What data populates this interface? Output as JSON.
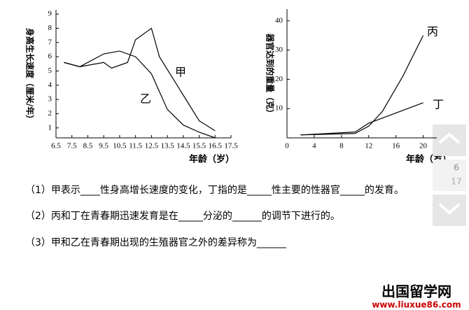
{
  "chart_data": [
    {
      "type": "line",
      "ylabel": "身高生长速度（厘米/年）",
      "xlabel": "年龄（岁）",
      "xlim": [
        6.5,
        17.5
      ],
      "xticks": [
        6.5,
        7.5,
        8.5,
        9.5,
        10.5,
        11.5,
        12.5,
        13.5,
        14.5,
        15.5,
        16.5,
        17.5
      ],
      "ylim": [
        0.3,
        9.3
      ],
      "yticks": [
        1,
        2,
        3,
        4,
        5,
        6,
        7,
        8,
        9
      ],
      "series": [
        {
          "name": "甲",
          "color": "#000000",
          "x": [
            7.0,
            8.0,
            9.5,
            10.0,
            11.0,
            11.5,
            12.5,
            13.0,
            14.5,
            15.5,
            16.5
          ],
          "values": [
            5.6,
            5.3,
            5.6,
            5.2,
            5.6,
            7.2,
            8.0,
            6.0,
            3.3,
            1.5,
            0.8
          ]
        },
        {
          "name": "乙",
          "color": "#000000",
          "x": [
            7.0,
            8.0,
            9.5,
            10.5,
            11.5,
            12.5,
            13.5,
            14.5,
            15.5,
            16.5
          ],
          "values": [
            5.6,
            5.3,
            6.2,
            6.4,
            6.0,
            4.8,
            2.3,
            1.2,
            0.7,
            0.3
          ]
        }
      ]
    },
    {
      "type": "line",
      "ylabel": "器官达到的重量（克）",
      "xlabel": "年龄（岁）",
      "xlim": [
        0,
        22
      ],
      "xticks": [
        0,
        4,
        8,
        12,
        16,
        20
      ],
      "ylim": [
        0,
        44
      ],
      "yticks": [
        10,
        20,
        30,
        40
      ],
      "series": [
        {
          "name": "丙",
          "color": "#000000",
          "x": [
            2,
            10,
            12,
            14,
            17,
            20
          ],
          "values": [
            1,
            1.5,
            4,
            9,
            21,
            35
          ]
        },
        {
          "name": "丁",
          "color": "#000000",
          "x": [
            2,
            10,
            12,
            20
          ],
          "values": [
            1,
            2,
            5,
            12
          ]
        }
      ]
    }
  ],
  "questions": [
    "（1）甲表示____性身高增长速度的变化，丁指的是_____性主要的性器官_____的发育。",
    "（2）丙和丁在青春期迅速发育是在_____分泌的______的调节下进行的。",
    "（3）甲和乙在青春期出现的生殖器官之外的差异称为______"
  ],
  "nav": {
    "page": "6",
    "next_page": "17"
  },
  "watermark": {
    "title": "出国留学网",
    "url": "www.liuxue86.com"
  }
}
